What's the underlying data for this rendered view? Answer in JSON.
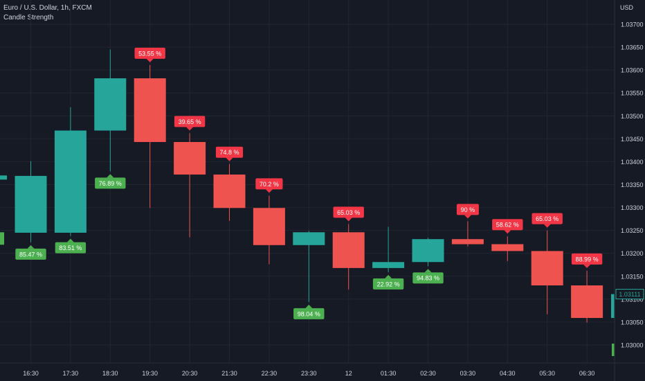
{
  "header": {
    "title": "Euro / U.S. Dollar, 1h, FXCM",
    "indicator": "Candle Strength"
  },
  "colors": {
    "background": "#161a25",
    "grid": "#232632",
    "bull": "#26a69a",
    "bear": "#ef5350",
    "label_green": "#4caf50",
    "label_red": "#f23645",
    "axis_text": "#d1d4dc"
  },
  "chart_data": {
    "type": "candlestick",
    "title": "Euro / U.S. Dollar, 1h, FXCM",
    "currency": "USD",
    "ylim": [
      1.02955,
      1.03725
    ],
    "y_ticks": [
      "1.03000",
      "1.03050",
      "1.03100",
      "1.03150",
      "1.03200",
      "1.03250",
      "1.03300",
      "1.03350",
      "1.03400",
      "1.03450",
      "1.03500",
      "1.03550",
      "1.03600",
      "1.03650",
      "1.03700"
    ],
    "x_ticks": [
      "16:30",
      "17:30",
      "18:30",
      "19:30",
      "20:30",
      "21:30",
      "22:30",
      "23:30",
      "12",
      "01:30",
      "02:30",
      "03:30",
      "04:30",
      "05:30",
      "06:30"
    ],
    "last_price": "1.03111",
    "grid": true,
    "candles": [
      {
        "time": "16:30",
        "open": 1.03245,
        "high": 1.03401,
        "low": 1.03224,
        "close": 1.03369,
        "strength": "85.47 %"
      },
      {
        "time": "17:30",
        "open": 1.03245,
        "high": 1.03519,
        "low": 1.03238,
        "close": 1.03468,
        "strength": "83.51 %"
      },
      {
        "time": "18:30",
        "open": 1.03468,
        "high": 1.03645,
        "low": 1.03379,
        "close": 1.03582,
        "strength": "76.89 %"
      },
      {
        "time": "19:30",
        "open": 1.03582,
        "high": 1.03611,
        "low": 1.03299,
        "close": 1.03443,
        "strength": "53.55 %"
      },
      {
        "time": "20:30",
        "open": 1.03443,
        "high": 1.03462,
        "low": 1.03235,
        "close": 1.03372,
        "strength": "39.65 %"
      },
      {
        "time": "21:30",
        "open": 1.03372,
        "high": 1.03395,
        "low": 1.03271,
        "close": 1.03299,
        "strength": "74.8 %"
      },
      {
        "time": "22:30",
        "open": 1.03299,
        "high": 1.03326,
        "low": 1.03176,
        "close": 1.03218,
        "strength": "70.2 %"
      },
      {
        "time": "23:30",
        "open": 1.03218,
        "high": 1.03249,
        "low": 1.03094,
        "close": 1.03246,
        "strength": "98.04 %"
      },
      {
        "time": "12",
        "open": 1.03246,
        "high": 1.03264,
        "low": 1.03121,
        "close": 1.03168,
        "strength": "65.03 %"
      },
      {
        "time": "01:30",
        "open": 1.03168,
        "high": 1.03258,
        "low": 1.03159,
        "close": 1.03181,
        "strength": "22.92 %"
      },
      {
        "time": "02:30",
        "open": 1.03181,
        "high": 1.03234,
        "low": 1.03172,
        "close": 1.03231,
        "strength": "94.83 %"
      },
      {
        "time": "03:30",
        "open": 1.03231,
        "high": 1.0327,
        "low": 1.03215,
        "close": 1.0322,
        "strength": "90 %"
      },
      {
        "time": "04:30",
        "open": 1.0322,
        "high": 1.03237,
        "low": 1.03183,
        "close": 1.03205,
        "strength": "58.62 %"
      },
      {
        "time": "05:30",
        "open": 1.03205,
        "high": 1.0325,
        "low": 1.03067,
        "close": 1.0313,
        "strength": "65.03 %"
      },
      {
        "time": "06:30",
        "open": 1.0313,
        "high": 1.03162,
        "low": 1.03049,
        "close": 1.03059,
        "strength": "88.99 %"
      }
    ]
  }
}
